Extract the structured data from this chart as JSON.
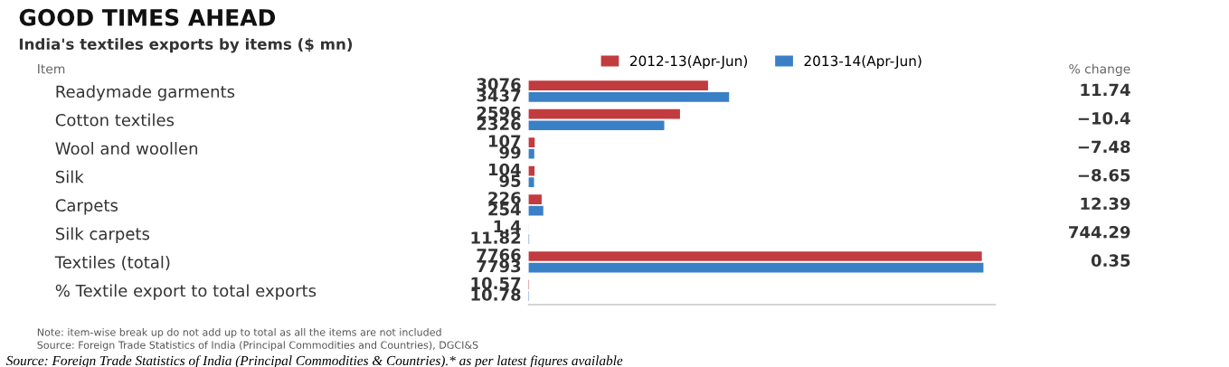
{
  "chart_data": {
    "type": "bar",
    "orientation": "horizontal",
    "title": "GOOD TIMES AHEAD",
    "subtitle": "India's textiles exports by items ($ mn)",
    "categories": [
      "Readymade garments",
      "Cotton textiles",
      "Wool and woollen",
      "Silk",
      "Carpets",
      "Silk carpets",
      "Textiles (total)",
      "% Textile export to total exports"
    ],
    "series": [
      {
        "name": "2012-13(Apr-Jun)",
        "color": "#c23b3f",
        "values": [
          3076,
          2596,
          107,
          104,
          226,
          1.4,
          7766,
          10.57
        ]
      },
      {
        "name": "2013-14(Apr-Jun)",
        "color": "#3a80c6",
        "values": [
          3437,
          2326,
          99,
          95,
          254,
          11.82,
          7793,
          10.78
        ]
      }
    ],
    "xlim": [
      0,
      8000
    ],
    "tick_labels": "y",
    "data_labels": true,
    "legend": "top",
    "grid": false,
    "annotations": [
      "Item",
      "% change",
      "Note: item-wise break up do not add up to total as all the items are not included",
      "Source: Foreign Trade Statistics of India (Principal Commodities and Countries), DGCI&S",
      "Source: Foreign Trade Statistics of India (Principal Commodities & Countries).* as per latest figures available",
      "11.74",
      "−10.4",
      "−7.48",
      "−8.65",
      "12.39",
      "744.29",
      "0.35"
    ]
  }
}
